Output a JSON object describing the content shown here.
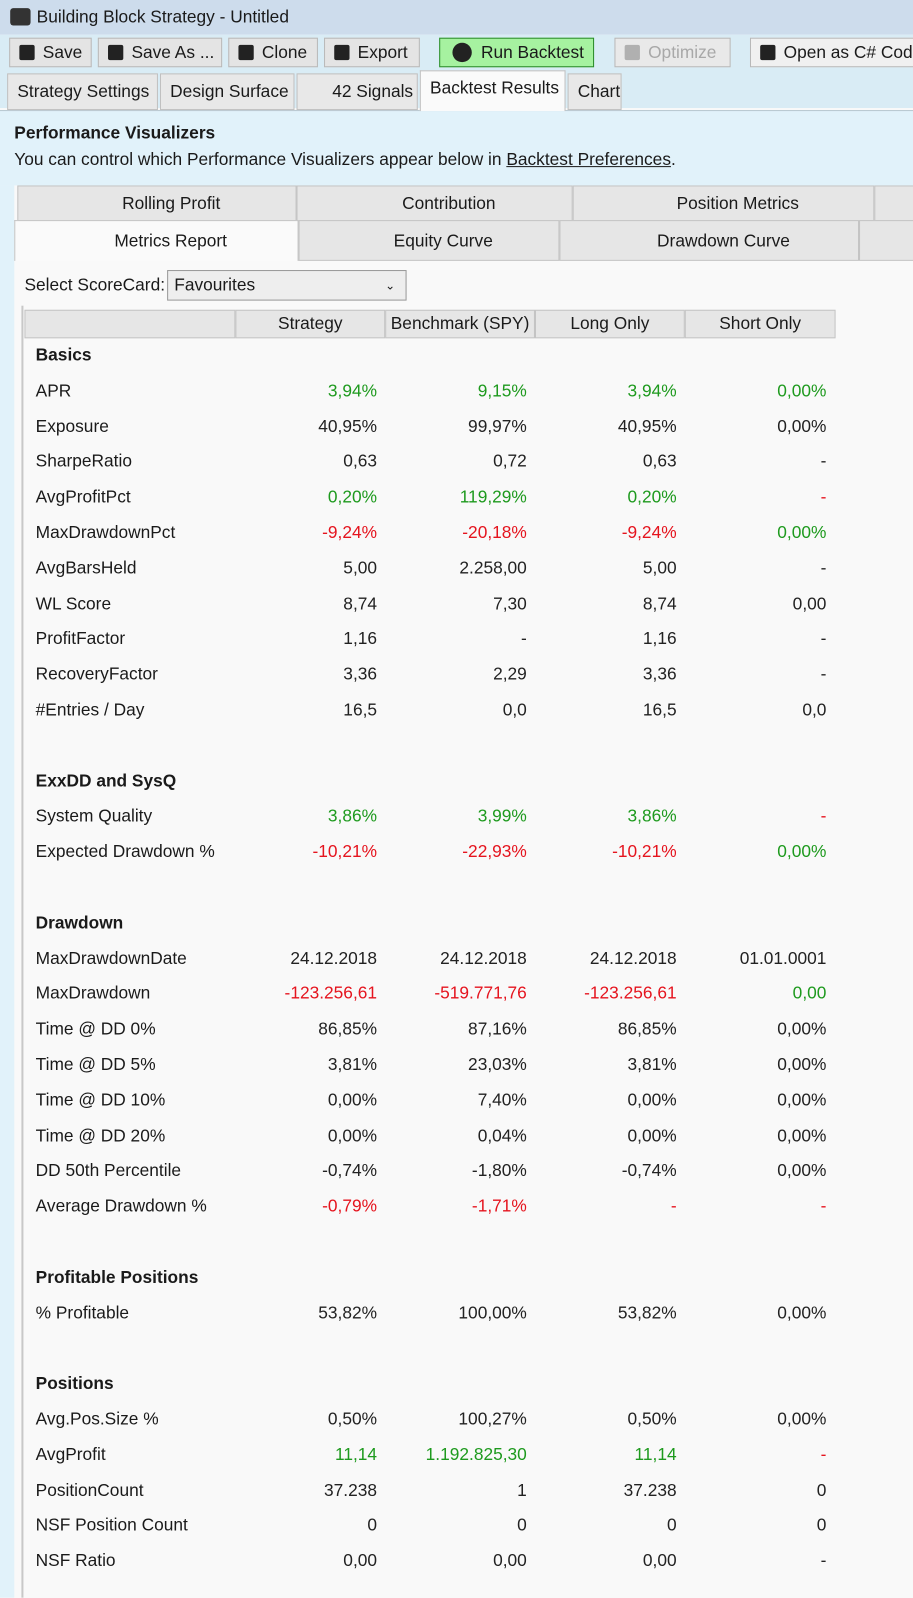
{
  "window": {
    "title": "Building Block Strategy - Untitled"
  },
  "toolbar": [
    "Save",
    "Save As ...",
    "Clone",
    "Export",
    "Run Backtest",
    "Optimize",
    "Open as C# Code"
  ],
  "tabs": [
    "Strategy Settings",
    "Design Surface",
    "42 Signals",
    "Backtest Results",
    "Chart"
  ],
  "header": {
    "title": "Performance Visualizers",
    "text": "You can control which Performance Visualizers appear below in ",
    "link": "Backtest Preferences",
    "end": "."
  },
  "visualizer_tabs": {
    "row1": [
      "Rolling Profit",
      "Contribution",
      "Position Metrics"
    ],
    "row2": [
      "Metrics Report",
      "Equity Curve",
      "Drawdown Curve"
    ]
  },
  "scorecard": {
    "label": "Select ScoreCard:",
    "value": "Favourites"
  },
  "table": {
    "columns": [
      "Strategy",
      "Benchmark (SPY)",
      "Long Only",
      "Short Only"
    ],
    "sections": [
      {
        "title": "Basics",
        "rows": [
          {
            "name": "APR",
            "cells": [
              "3,94%",
              "9,15%",
              "3,94%",
              "0,00%"
            ],
            "colors": [
              "#1e9a1e",
              "#1e9a1e",
              "#1e9a1e",
              "#1e9a1e"
            ]
          },
          {
            "name": "Exposure",
            "cells": [
              "40,95%",
              "99,97%",
              "40,95%",
              "0,00%"
            ],
            "colors": [
              "#222222",
              "#222222",
              "#222222",
              "#222222"
            ]
          },
          {
            "name": "SharpeRatio",
            "cells": [
              "0,63",
              "0,72",
              "0,63",
              "-"
            ],
            "colors": [
              "#222222",
              "#222222",
              "#222222",
              "#222222"
            ]
          },
          {
            "name": "AvgProfitPct",
            "cells": [
              "0,20%",
              "119,29%",
              "0,20%",
              "-"
            ],
            "colors": [
              "#1e9a1e",
              "#1e9a1e",
              "#1e9a1e",
              "#e5141e"
            ]
          },
          {
            "name": "MaxDrawdownPct",
            "cells": [
              "-9,24%",
              "-20,18%",
              "-9,24%",
              "0,00%"
            ],
            "colors": [
              "#e5141e",
              "#e5141e",
              "#e5141e",
              "#1e9a1e"
            ]
          },
          {
            "name": "AvgBarsHeld",
            "cells": [
              "5,00",
              "2.258,00",
              "5,00",
              "-"
            ],
            "colors": [
              "#222222",
              "#222222",
              "#222222",
              "#222222"
            ]
          },
          {
            "name": "WL Score",
            "cells": [
              "8,74",
              "7,30",
              "8,74",
              "0,00"
            ],
            "colors": [
              "#222222",
              "#222222",
              "#222222",
              "#222222"
            ]
          },
          {
            "name": "ProfitFactor",
            "cells": [
              "1,16",
              "-",
              "1,16",
              "-"
            ],
            "colors": [
              "#222222",
              "#222222",
              "#222222",
              "#222222"
            ]
          },
          {
            "name": "RecoveryFactor",
            "cells": [
              "3,36",
              "2,29",
              "3,36",
              "-"
            ],
            "colors": [
              "#222222",
              "#222222",
              "#222222",
              "#222222"
            ]
          },
          {
            "name": "#Entries / Day",
            "cells": [
              "16,5",
              "0,0",
              "16,5",
              "0,0"
            ],
            "colors": [
              "#222222",
              "#222222",
              "#222222",
              "#222222"
            ]
          }
        ]
      },
      {
        "title": "ExxDD and SysQ",
        "rows": [
          {
            "name": "System Quality",
            "cells": [
              "3,86%",
              "3,99%",
              "3,86%",
              "-"
            ],
            "colors": [
              "#1e9a1e",
              "#1e9a1e",
              "#1e9a1e",
              "#e5141e"
            ]
          },
          {
            "name": "Expected Drawdown %",
            "cells": [
              "-10,21%",
              "-22,93%",
              "-10,21%",
              "0,00%"
            ],
            "colors": [
              "#e5141e",
              "#e5141e",
              "#e5141e",
              "#1e9a1e"
            ]
          }
        ]
      },
      {
        "title": "Drawdown",
        "rows": [
          {
            "name": "MaxDrawdownDate",
            "cells": [
              "24.12.2018",
              "24.12.2018",
              "24.12.2018",
              "01.01.0001"
            ],
            "colors": [
              "#222222",
              "#222222",
              "#222222",
              "#222222"
            ]
          },
          {
            "name": "MaxDrawdown",
            "cells": [
              "-123.256,61",
              "-519.771,76",
              "-123.256,61",
              "0,00"
            ],
            "colors": [
              "#e5141e",
              "#e5141e",
              "#e5141e",
              "#1e9a1e"
            ]
          },
          {
            "name": "Time @ DD 0%",
            "cells": [
              "86,85%",
              "87,16%",
              "86,85%",
              "0,00%"
            ],
            "colors": [
              "#222222",
              "#222222",
              "#222222",
              "#222222"
            ]
          },
          {
            "name": "Time @ DD 5%",
            "cells": [
              "3,81%",
              "23,03%",
              "3,81%",
              "0,00%"
            ],
            "colors": [
              "#222222",
              "#222222",
              "#222222",
              "#222222"
            ]
          },
          {
            "name": "Time @ DD 10%",
            "cells": [
              "0,00%",
              "7,40%",
              "0,00%",
              "0,00%"
            ],
            "colors": [
              "#222222",
              "#222222",
              "#222222",
              "#222222"
            ]
          },
          {
            "name": "Time @ DD 20%",
            "cells": [
              "0,00%",
              "0,04%",
              "0,00%",
              "0,00%"
            ],
            "colors": [
              "#222222",
              "#222222",
              "#222222",
              "#222222"
            ]
          },
          {
            "name": "DD 50th Percentile",
            "cells": [
              "-0,74%",
              "-1,80%",
              "-0,74%",
              "0,00%"
            ],
            "colors": [
              "#222222",
              "#222222",
              "#222222",
              "#222222"
            ]
          },
          {
            "name": "Average Drawdown %",
            "cells": [
              "-0,79%",
              "-1,71%",
              "-",
              "-"
            ],
            "colors": [
              "#e5141e",
              "#e5141e",
              "#e5141e",
              "#e5141e"
            ]
          }
        ]
      },
      {
        "title": "Profitable Positions",
        "rows": [
          {
            "name": "% Profitable",
            "cells": [
              "53,82%",
              "100,00%",
              "53,82%",
              "0,00%"
            ],
            "colors": [
              "#222222",
              "#222222",
              "#222222",
              "#222222"
            ]
          }
        ]
      },
      {
        "title": "Positions",
        "rows": [
          {
            "name": "Avg.Pos.Size %",
            "cells": [
              "0,50%",
              "100,27%",
              "0,50%",
              "0,00%"
            ],
            "colors": [
              "#222222",
              "#222222",
              "#222222",
              "#222222"
            ]
          },
          {
            "name": "AvgProfit",
            "cells": [
              "11,14",
              "1.192.825,30",
              "11,14",
              "-"
            ],
            "colors": [
              "#1e9a1e",
              "#1e9a1e",
              "#1e9a1e",
              "#e5141e"
            ]
          },
          {
            "name": "PositionCount",
            "cells": [
              "37.238",
              "1",
              "37.238",
              "0"
            ],
            "colors": [
              "#222222",
              "#222222",
              "#222222",
              "#222222"
            ]
          },
          {
            "name": "NSF Position Count",
            "cells": [
              "0",
              "0",
              "0",
              "0"
            ],
            "colors": [
              "#222222",
              "#222222",
              "#222222",
              "#222222"
            ]
          },
          {
            "name": "NSF Ratio",
            "cells": [
              "0,00",
              "0,00",
              "0,00",
              "-"
            ],
            "colors": [
              "#222222",
              "#222222",
              "#222222",
              "#222222"
            ]
          }
        ]
      }
    ]
  }
}
